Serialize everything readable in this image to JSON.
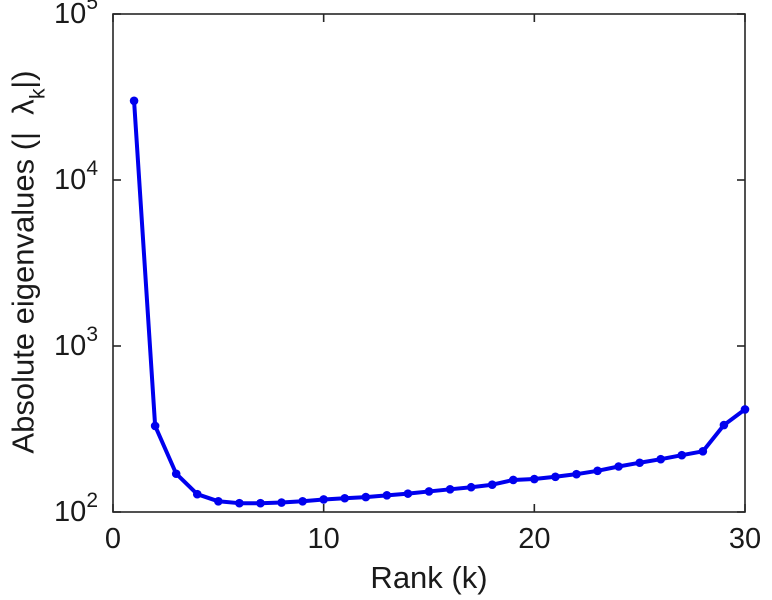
{
  "figure": {
    "xlabel": "Rank (k)",
    "ylabel_prefix": "Absolute eigenvalues (|",
    "ylabel_lambda": "λ",
    "ylabel_sub": "k",
    "ylabel_suffix": "|)"
  },
  "chart_data": {
    "type": "line",
    "title": "",
    "xlabel": "Rank (k)",
    "ylabel": "Absolute eigenvalues (|lambda_k|)",
    "yscale": "log",
    "grid": false,
    "legend": "none",
    "xlim": [
      0,
      30
    ],
    "ylim_log10": [
      2,
      5
    ],
    "x_ticks": [
      0,
      10,
      20,
      30
    ],
    "y_tick_base": "10",
    "y_tick_exponents": [
      2,
      3,
      4,
      5
    ],
    "line_color": "#0000ee",
    "axis_color": "#262626",
    "tick_label_color": "#1a1a1a",
    "marker": "circle",
    "line_width": 4,
    "marker_radius": 4.3,
    "series": [
      {
        "name": "absolute-eigenvalues",
        "x": [
          1,
          2,
          3,
          4,
          5,
          6,
          7,
          8,
          9,
          10,
          11,
          12,
          13,
          14,
          15,
          16,
          17,
          18,
          19,
          20,
          21,
          22,
          23,
          24,
          25,
          26,
          27,
          28,
          29,
          30
        ],
        "y": [
          30000,
          330,
          170,
          128,
          116,
          113,
          113,
          114,
          116,
          119,
          121,
          123,
          126,
          129,
          133,
          137,
          141,
          146,
          156,
          158,
          163,
          169,
          177,
          188,
          198,
          208,
          220,
          232,
          334,
          415
        ]
      }
    ]
  }
}
